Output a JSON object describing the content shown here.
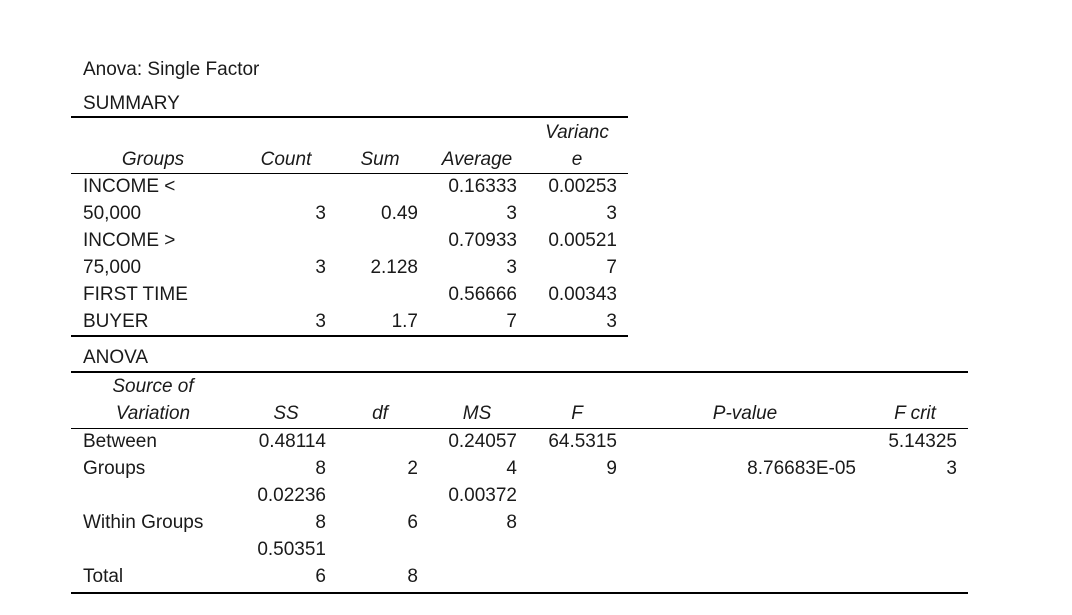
{
  "title": "Anova: Single Factor",
  "summary": {
    "label": "SUMMARY",
    "headers": [
      "Groups",
      "Count",
      "Sum",
      "Average",
      "Varianc",
      "e"
    ],
    "rows": [
      {
        "g1": "INCOME <",
        "g2": "50,000",
        "count": "3",
        "sum": "0.49",
        "avg1": "0.16333",
        "avg2": "3",
        "var1": "0.00253",
        "var2": "3"
      },
      {
        "g1": "INCOME >",
        "g2": "75,000",
        "count": "3",
        "sum": "2.128",
        "avg1": "0.70933",
        "avg2": "3",
        "var1": "0.00521",
        "var2": "7"
      },
      {
        "g1": "FIRST TIME",
        "g2": "BUYER",
        "count": "3",
        "sum": "1.7",
        "avg1": "0.56666",
        "avg2": "7",
        "var1": "0.00343",
        "var2": "3"
      }
    ]
  },
  "anova": {
    "label": "ANOVA",
    "headers": {
      "src1": "Source of",
      "src2": "Variation",
      "ss": "SS",
      "df": "df",
      "ms": "MS",
      "f": "F",
      "p": "P-value",
      "fcrit": "F crit"
    },
    "rows": [
      {
        "s1": "Between",
        "s2": "Groups",
        "ss1": "0.48114",
        "ss2": "8",
        "df": "2",
        "ms1": "0.24057",
        "ms2": "4",
        "f1": "64.5315",
        "f2": "9",
        "p": "8.76683E-05",
        "fc1": "5.14325",
        "fc2": "3"
      },
      {
        "s1": "",
        "s2": "Within Groups",
        "ss1": "0.02236",
        "ss2": "8",
        "df": "6",
        "ms1": "0.00372",
        "ms2": "8",
        "f1": "",
        "f2": "",
        "p": "",
        "fc1": "",
        "fc2": ""
      },
      {
        "s1": "",
        "s2": "Total",
        "ss1": "0.50351",
        "ss2": "6",
        "df": "8",
        "ms1": "",
        "ms2": "",
        "f1": "",
        "f2": "",
        "p": "",
        "fc1": "",
        "fc2": ""
      }
    ]
  }
}
